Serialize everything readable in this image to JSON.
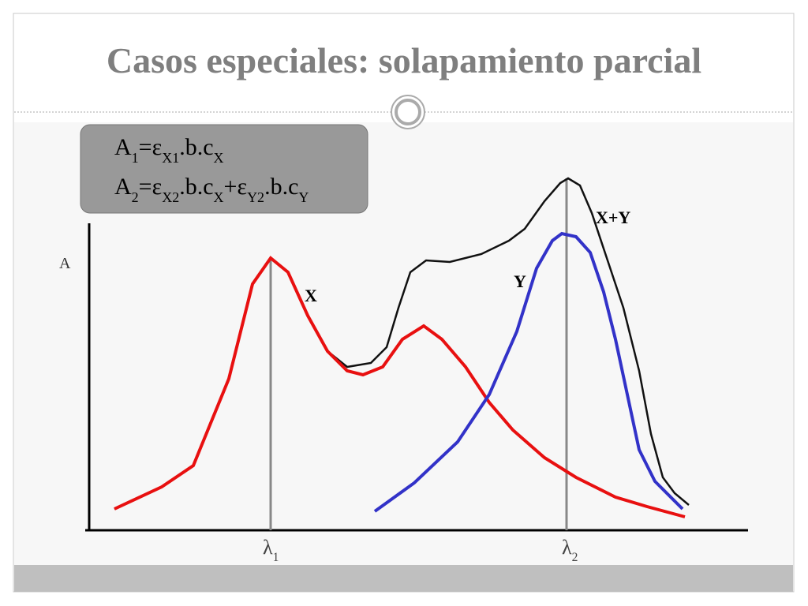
{
  "title": "Casos especiales: solapamiento parcial",
  "formulas": [
    [
      "A",
      "1",
      "=ε",
      "X1",
      ".b.c",
      "X"
    ],
    [
      "A",
      "2",
      "=ε",
      "X2",
      ".b.c",
      "X",
      "+ε",
      "Y2",
      ".b.c",
      "Y"
    ]
  ],
  "axis_label": "A",
  "curve_labels": {
    "x": "X",
    "y": "Y",
    "sum": "X+Y"
  },
  "wavelengths": [
    [
      "λ",
      "1"
    ],
    [
      "λ",
      "2"
    ]
  ]
}
